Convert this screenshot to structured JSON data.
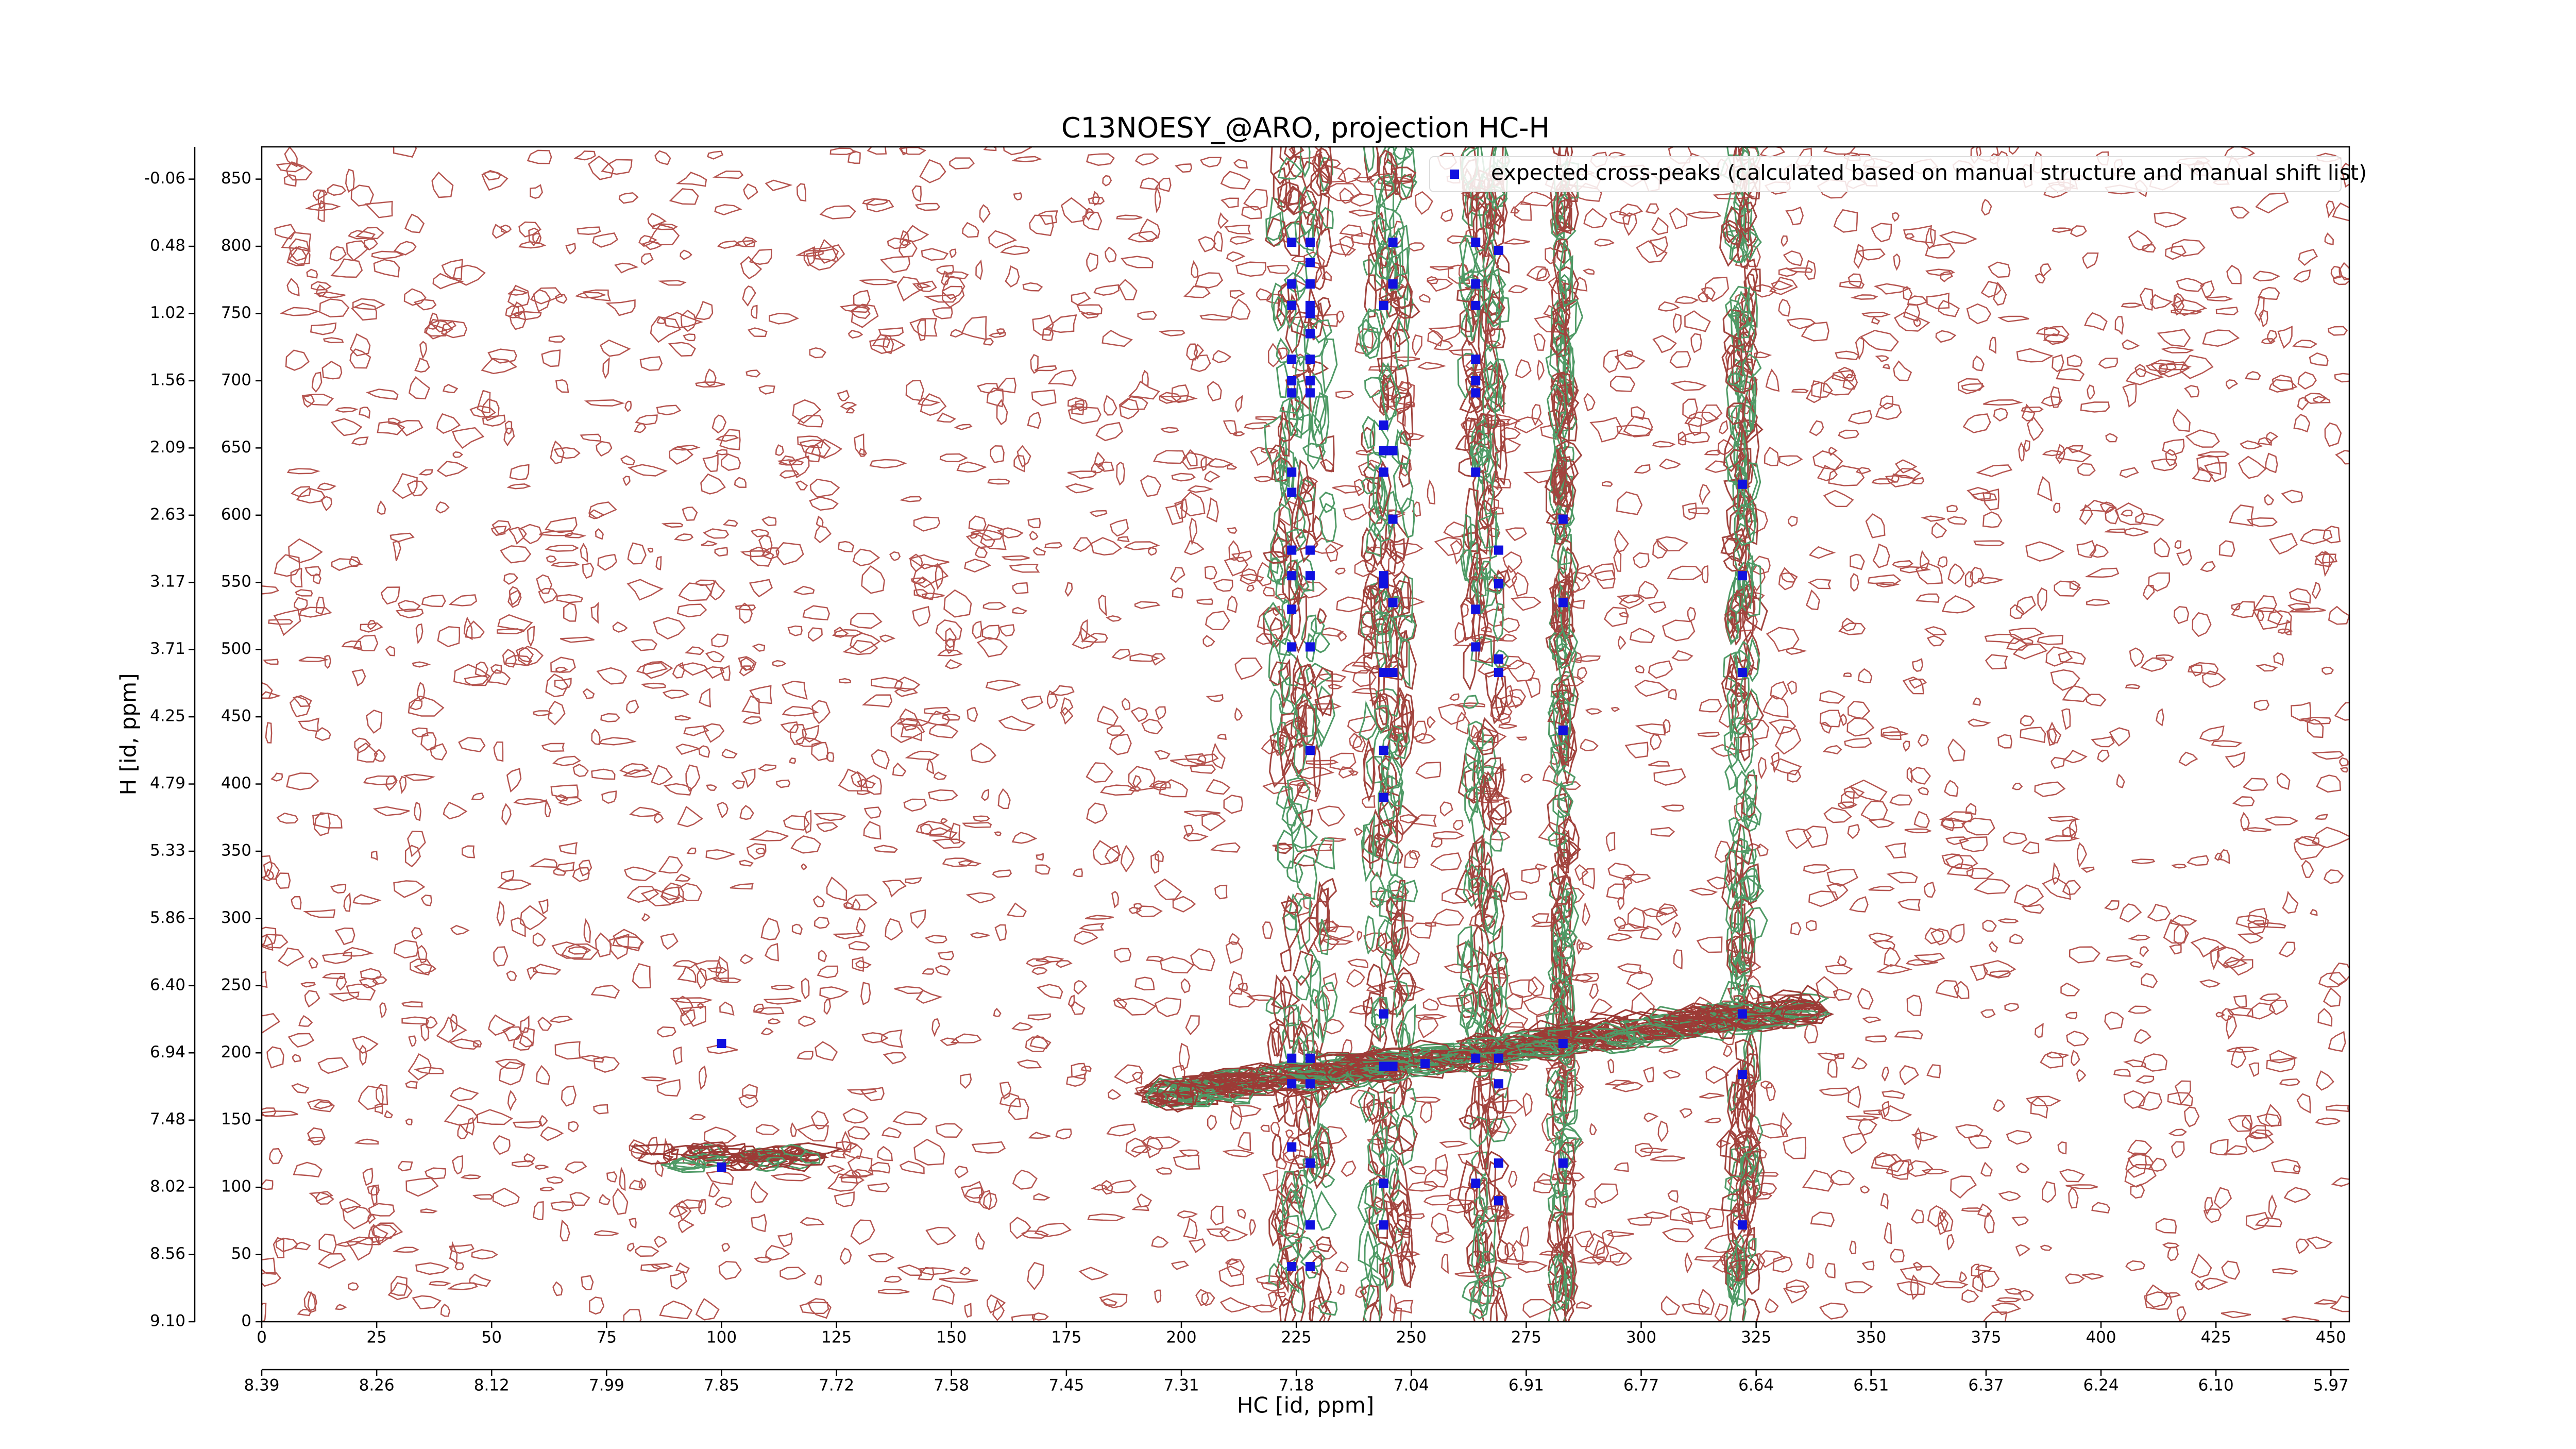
{
  "chart_data": {
    "type": "scatter",
    "title": "C13NOESY_@ARO, projection HC-H",
    "xlabel": "HC [id, ppm]",
    "ylabel": "H [id, ppm]",
    "xlim": [
      0,
      454
    ],
    "ylim": [
      0,
      874
    ],
    "xticks": [
      0,
      25,
      50,
      75,
      100,
      125,
      150,
      175,
      200,
      225,
      250,
      275,
      300,
      325,
      350,
      375,
      400,
      425,
      450
    ],
    "yticks": [
      0,
      50,
      100,
      150,
      200,
      250,
      300,
      350,
      400,
      450,
      500,
      550,
      600,
      650,
      700,
      750,
      800,
      850
    ],
    "x2ticks": [
      {
        "value": 0,
        "label": "8.39"
      },
      {
        "value": 25,
        "label": "8.26"
      },
      {
        "value": 50,
        "label": "8.12"
      },
      {
        "value": 75,
        "label": "7.99"
      },
      {
        "value": 100,
        "label": "7.85"
      },
      {
        "value": 125,
        "label": "7.72"
      },
      {
        "value": 150,
        "label": "7.58"
      },
      {
        "value": 175,
        "label": "7.45"
      },
      {
        "value": 200,
        "label": "7.31"
      },
      {
        "value": 225,
        "label": "7.18"
      },
      {
        "value": 250,
        "label": "7.04"
      },
      {
        "value": 275,
        "label": "6.91"
      },
      {
        "value": 300,
        "label": "6.77"
      },
      {
        "value": 325,
        "label": "6.64"
      },
      {
        "value": 350,
        "label": "6.51"
      },
      {
        "value": 375,
        "label": "6.37"
      },
      {
        "value": 400,
        "label": "6.24"
      },
      {
        "value": 425,
        "label": "6.10"
      },
      {
        "value": 450,
        "label": "5.97"
      }
    ],
    "y2ticks": [
      {
        "value": 0,
        "label": "9.10"
      },
      {
        "value": 50,
        "label": "8.56"
      },
      {
        "value": 100,
        "label": "8.02"
      },
      {
        "value": 150,
        "label": "7.48"
      },
      {
        "value": 200,
        "label": "6.94"
      },
      {
        "value": 250,
        "label": "6.40"
      },
      {
        "value": 300,
        "label": "5.86"
      },
      {
        "value": 350,
        "label": "5.33"
      },
      {
        "value": 400,
        "label": "4.79"
      },
      {
        "value": 450,
        "label": "4.25"
      },
      {
        "value": 500,
        "label": "3.71"
      },
      {
        "value": 550,
        "label": "3.17"
      },
      {
        "value": 600,
        "label": "2.63"
      },
      {
        "value": 650,
        "label": "2.09"
      },
      {
        "value": 700,
        "label": "1.56"
      },
      {
        "value": 750,
        "label": "1.02"
      },
      {
        "value": 800,
        "label": "0.48"
      },
      {
        "value": 850,
        "label": "-0.06"
      }
    ],
    "legend_position": "upper right",
    "series": [
      {
        "name": "expected cross-peaks (calculated based on manual structure and manual shift list)",
        "color": "#1010e0",
        "x": [
          224,
          224,
          224,
          224,
          224,
          224,
          224,
          224,
          224,
          224,
          224,
          224,
          224,
          224,
          224,
          224,
          228,
          228,
          228,
          228,
          228,
          228,
          228,
          228,
          228,
          228,
          228,
          228,
          228,
          228,
          228,
          228,
          228,
          228,
          244,
          244,
          244,
          244,
          244,
          244,
          244,
          244,
          244,
          244,
          244,
          244,
          244,
          246,
          246,
          246,
          246,
          246,
          246,
          246,
          253,
          264,
          264,
          264,
          264,
          264,
          264,
          264,
          264,
          264,
          264,
          264,
          269,
          269,
          269,
          269,
          269,
          269,
          269,
          269,
          269,
          283,
          283,
          283,
          283,
          283,
          322,
          322,
          322,
          322,
          322,
          322,
          100,
          100
        ],
        "values": [
          803,
          772,
          756,
          716,
          700,
          691,
          632,
          617,
          574,
          555,
          530,
          502,
          196,
          177,
          130,
          41,
          803,
          788,
          772,
          756,
          750,
          735,
          716,
          700,
          691,
          574,
          555,
          502,
          425,
          196,
          177,
          118,
          72,
          41,
          756,
          667,
          648,
          632,
          555,
          549,
          483,
          425,
          390,
          229,
          190,
          103,
          72,
          803,
          772,
          648,
          597,
          535,
          483,
          190,
          192,
          803,
          772,
          756,
          716,
          700,
          691,
          632,
          530,
          502,
          196,
          103,
          797,
          574,
          549,
          493,
          483,
          196,
          177,
          118,
          90,
          597,
          535,
          440,
          207,
          118,
          623,
          555,
          483,
          229,
          184,
          72,
          207,
          115
        ]
      }
    ]
  }
}
